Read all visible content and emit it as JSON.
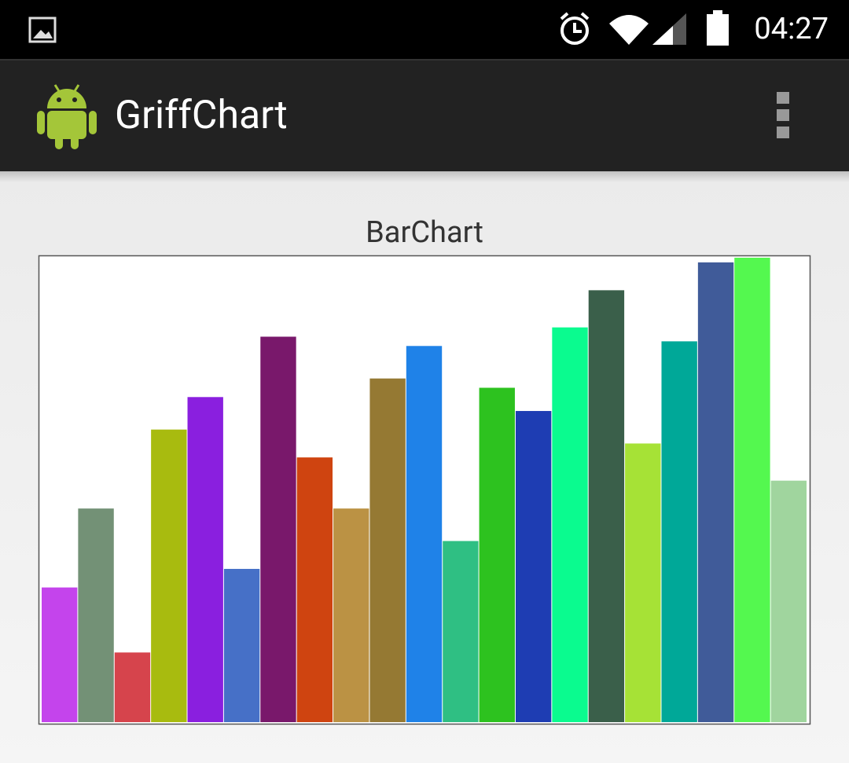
{
  "status_bar": {
    "time": "04:27"
  },
  "app_bar": {
    "title": "GriffChart"
  },
  "chart_data": {
    "type": "bar",
    "title": "BarChart",
    "values": [
      29,
      46,
      15,
      63,
      70,
      33,
      83,
      57,
      46,
      74,
      81,
      39,
      72,
      67,
      85,
      93,
      60,
      82,
      99,
      100,
      52
    ],
    "colors": [
      "#c444ec",
      "#739176",
      "#d6444c",
      "#a8bb0f",
      "#8a1fdf",
      "#4670c7",
      "#79186b",
      "#cf4410",
      "#bb9244",
      "#957933",
      "#1f82e8",
      "#2fbf83",
      "#2dc21f",
      "#1e3db3",
      "#0afb8f",
      "#3a5f4a",
      "#a6e236",
      "#00a898",
      "#405b99",
      "#54f84f",
      "#a0d59e"
    ],
    "ylim": [
      0,
      100
    ]
  }
}
